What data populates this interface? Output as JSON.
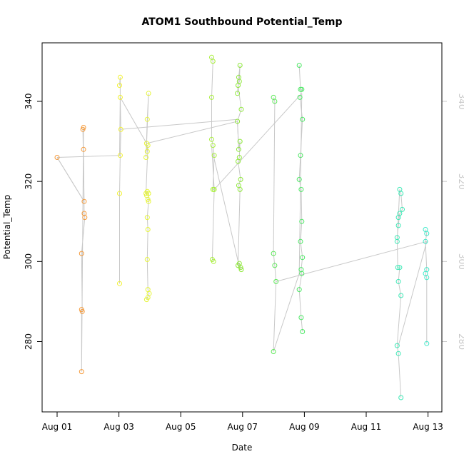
{
  "chart_data": {
    "type": "scatter",
    "title": "ATOM1 Southbound Potential_Temp",
    "xlabel": "Date",
    "ylabel": "Potential_Temp",
    "xlim": [
      "2016-08-01",
      "2016-08-13"
    ],
    "ylim_left": [
      261,
      355
    ],
    "ylim_right": [
      261,
      355
    ],
    "x_ticks": [
      {
        "date": "2016-08-01",
        "label": "Aug 01"
      },
      {
        "date": "2016-08-03",
        "label": "Aug 03"
      },
      {
        "date": "2016-08-05",
        "label": "Aug 05"
      },
      {
        "date": "2016-08-07",
        "label": "Aug 07"
      },
      {
        "date": "2016-08-09",
        "label": "Aug 09"
      },
      {
        "date": "2016-08-11",
        "label": "Aug 11"
      },
      {
        "date": "2016-08-13",
        "label": "Aug 13"
      }
    ],
    "y_ticks_left": [
      280,
      300,
      320,
      340
    ],
    "y_ticks_right": [
      280,
      300,
      320,
      340
    ],
    "grid": false,
    "legend": "none",
    "line_color": "#c8c8c8",
    "points": [
      {
        "x": "2016-08-01 00:00",
        "y": 326,
        "color": "#f59a3a"
      },
      {
        "x": "2016-08-01 21:00",
        "y": 315,
        "color": "#f59a3a"
      },
      {
        "x": "2016-08-01 20:00",
        "y": 333,
        "color": "#f59a3a"
      },
      {
        "x": "2016-08-01 20:30",
        "y": 328,
        "color": "#f59a3a"
      },
      {
        "x": "2016-08-01 21:00",
        "y": 312,
        "color": "#f59a3a"
      },
      {
        "x": "2016-08-01 21:30",
        "y": 311,
        "color": "#f59a3a"
      },
      {
        "x": "2016-08-01 19:00",
        "y": 302,
        "color": "#f59a3a"
      },
      {
        "x": "2016-08-01 19:30",
        "y": 287.5,
        "color": "#f59a3a"
      },
      {
        "x": "2016-08-01 19:00",
        "y": 288,
        "color": "#f59a3a"
      },
      {
        "x": "2016-08-01 19:00",
        "y": 272.5,
        "color": "#f59a3a"
      },
      {
        "x": "2016-08-01 20:30",
        "y": 333.5,
        "color": "#f59a3a"
      },
      {
        "x": "2016-08-03 00:30",
        "y": 344,
        "color": "#f2f22e"
      },
      {
        "x": "2016-08-03 01:00",
        "y": 346,
        "color": "#f2f22e"
      },
      {
        "x": "2016-08-03 01:00",
        "y": 341,
        "color": "#f2f22e"
      },
      {
        "x": "2016-08-03 01:30",
        "y": 333,
        "color": "#f2f22e"
      },
      {
        "x": "2016-08-03 01:00",
        "y": 326.5,
        "color": "#f2f22e"
      },
      {
        "x": "2016-08-03 00:30",
        "y": 317,
        "color": "#f2f22e"
      },
      {
        "x": "2016-08-03 00:30",
        "y": 294.5,
        "color": "#f2f22e"
      },
      {
        "x": "2016-08-03 21:00",
        "y": 326,
        "color": "#e6f53a"
      },
      {
        "x": "2016-08-03 22:00",
        "y": 335.5,
        "color": "#e6f53a"
      },
      {
        "x": "2016-08-03 23:00",
        "y": 342,
        "color": "#e6f53a"
      },
      {
        "x": "2016-08-03 21:30",
        "y": 329.5,
        "color": "#e6f53a"
      },
      {
        "x": "2016-08-03 22:00",
        "y": 327.5,
        "color": "#e6f53a"
      },
      {
        "x": "2016-08-03 22:30",
        "y": 329,
        "color": "#e6f53a"
      },
      {
        "x": "2016-08-03 21:00",
        "y": 317,
        "color": "#e6f53a"
      },
      {
        "x": "2016-08-03 21:30",
        "y": 316.5,
        "color": "#e6f53a"
      },
      {
        "x": "2016-08-03 22:00",
        "y": 317.5,
        "color": "#e6f53a"
      },
      {
        "x": "2016-08-03 23:00",
        "y": 317,
        "color": "#e6f53a"
      },
      {
        "x": "2016-08-03 22:30",
        "y": 315.5,
        "color": "#e6f53a"
      },
      {
        "x": "2016-08-03 23:00",
        "y": 315,
        "color": "#e6f53a"
      },
      {
        "x": "2016-08-03 22:00",
        "y": 311,
        "color": "#e6f53a"
      },
      {
        "x": "2016-08-03 22:30",
        "y": 308,
        "color": "#e6f53a"
      },
      {
        "x": "2016-08-03 22:00",
        "y": 300.5,
        "color": "#e6f53a"
      },
      {
        "x": "2016-08-03 22:30",
        "y": 293,
        "color": "#e6f53a"
      },
      {
        "x": "2016-08-03 23:30",
        "y": 292,
        "color": "#e6f53a"
      },
      {
        "x": "2016-08-03 21:30",
        "y": 290.5,
        "color": "#e6f53a"
      },
      {
        "x": "2016-08-03 22:30",
        "y": 291,
        "color": "#e6f53a"
      },
      {
        "x": "2016-08-06 00:00",
        "y": 351,
        "color": "#a8f03a"
      },
      {
        "x": "2016-08-06 01:00",
        "y": 350,
        "color": "#a8f03a"
      },
      {
        "x": "2016-08-06 00:00",
        "y": 341,
        "color": "#a8f03a"
      },
      {
        "x": "2016-08-06 00:00",
        "y": 330.5,
        "color": "#a8f03a"
      },
      {
        "x": "2016-08-06 01:00",
        "y": 329,
        "color": "#a8f03a"
      },
      {
        "x": "2016-08-06 02:00",
        "y": 326.5,
        "color": "#a8f03a"
      },
      {
        "x": "2016-08-06 01:00",
        "y": 318,
        "color": "#a8f03a"
      },
      {
        "x": "2016-08-06 02:00",
        "y": 318,
        "color": "#a8f03a"
      },
      {
        "x": "2016-08-06 00:30",
        "y": 300.5,
        "color": "#a8f03a"
      },
      {
        "x": "2016-08-06 01:30",
        "y": 300,
        "color": "#a8f03a"
      },
      {
        "x": "2016-08-06 20:00",
        "y": 342,
        "color": "#8ee83a"
      },
      {
        "x": "2016-08-06 21:00",
        "y": 346,
        "color": "#8ee83a"
      },
      {
        "x": "2016-08-06 22:00",
        "y": 349,
        "color": "#8ee83a"
      },
      {
        "x": "2016-08-06 21:30",
        "y": 345,
        "color": "#8ee83a"
      },
      {
        "x": "2016-08-06 20:30",
        "y": 344,
        "color": "#8ee83a"
      },
      {
        "x": "2016-08-06 23:00",
        "y": 338,
        "color": "#8ee83a"
      },
      {
        "x": "2016-08-06 20:00",
        "y": 335,
        "color": "#8ee83a"
      },
      {
        "x": "2016-08-06 21:00",
        "y": 328,
        "color": "#8ee83a"
      },
      {
        "x": "2016-08-06 22:00",
        "y": 330,
        "color": "#8ee83a"
      },
      {
        "x": "2016-08-06 21:30",
        "y": 326,
        "color": "#8ee83a"
      },
      {
        "x": "2016-08-06 20:30",
        "y": 325,
        "color": "#8ee83a"
      },
      {
        "x": "2016-08-06 22:30",
        "y": 320.5,
        "color": "#8ee83a"
      },
      {
        "x": "2016-08-06 21:00",
        "y": 319,
        "color": "#8ee83a"
      },
      {
        "x": "2016-08-06 22:00",
        "y": 318,
        "color": "#8ee83a"
      },
      {
        "x": "2016-08-06 20:30",
        "y": 299,
        "color": "#8ee83a"
      },
      {
        "x": "2016-08-06 21:30",
        "y": 299.5,
        "color": "#8ee83a"
      },
      {
        "x": "2016-08-06 22:30",
        "y": 298.5,
        "color": "#8ee83a"
      },
      {
        "x": "2016-08-06 23:00",
        "y": 298,
        "color": "#8ee83a"
      },
      {
        "x": "2016-08-08 00:00",
        "y": 341,
        "color": "#5ee85a"
      },
      {
        "x": "2016-08-08 01:00",
        "y": 340,
        "color": "#5ee85a"
      },
      {
        "x": "2016-08-08 00:00",
        "y": 302,
        "color": "#5ee85a"
      },
      {
        "x": "2016-08-08 01:00",
        "y": 299,
        "color": "#5ee85a"
      },
      {
        "x": "2016-08-08 02:00",
        "y": 295,
        "color": "#5ee85a"
      },
      {
        "x": "2016-08-08 00:00",
        "y": 277.5,
        "color": "#5ee85a"
      },
      {
        "x": "2016-08-08 20:00",
        "y": 349,
        "color": "#4ce864"
      },
      {
        "x": "2016-08-08 21:00",
        "y": 343,
        "color": "#4ce864"
      },
      {
        "x": "2016-08-08 22:00",
        "y": 343,
        "color": "#4ce864"
      },
      {
        "x": "2016-08-08 20:30",
        "y": 341,
        "color": "#4ce864"
      },
      {
        "x": "2016-08-08 22:30",
        "y": 335.5,
        "color": "#4ce864"
      },
      {
        "x": "2016-08-08 21:00",
        "y": 326.5,
        "color": "#4ce864"
      },
      {
        "x": "2016-08-08 20:00",
        "y": 320.5,
        "color": "#4ce864"
      },
      {
        "x": "2016-08-08 21:30",
        "y": 318,
        "color": "#4ce864"
      },
      {
        "x": "2016-08-08 22:00",
        "y": 310,
        "color": "#4ce864"
      },
      {
        "x": "2016-08-08 21:00",
        "y": 305,
        "color": "#4ce864"
      },
      {
        "x": "2016-08-08 22:30",
        "y": 301,
        "color": "#4ce864"
      },
      {
        "x": "2016-08-08 21:30",
        "y": 298,
        "color": "#4ce864"
      },
      {
        "x": "2016-08-08 22:00",
        "y": 297,
        "color": "#4ce864"
      },
      {
        "x": "2016-08-08 20:00",
        "y": 293,
        "color": "#4ce864"
      },
      {
        "x": "2016-08-08 21:30",
        "y": 286,
        "color": "#4ce864"
      },
      {
        "x": "2016-08-08 22:30",
        "y": 282.5,
        "color": "#4ce864"
      },
      {
        "x": "2016-08-12 00:00",
        "y": 305,
        "color": "#3ee8b6"
      },
      {
        "x": "2016-08-12 02:00",
        "y": 318,
        "color": "#3ee8b6"
      },
      {
        "x": "2016-08-12 03:00",
        "y": 317,
        "color": "#3ee8b6"
      },
      {
        "x": "2016-08-12 04:00",
        "y": 313,
        "color": "#3ee8b6"
      },
      {
        "x": "2016-08-12 01:00",
        "y": 311,
        "color": "#3ee8b6"
      },
      {
        "x": "2016-08-12 02:00",
        "y": 312,
        "color": "#3ee8b6"
      },
      {
        "x": "2016-08-12 01:00",
        "y": 309,
        "color": "#3ee8b6"
      },
      {
        "x": "2016-08-12 00:00",
        "y": 306,
        "color": "#3ee8b6"
      },
      {
        "x": "2016-08-12 00:30",
        "y": 298.5,
        "color": "#3ee8b6"
      },
      {
        "x": "2016-08-12 02:00",
        "y": 298.5,
        "color": "#3ee8b6"
      },
      {
        "x": "2016-08-12 01:00",
        "y": 295,
        "color": "#3ee8b6"
      },
      {
        "x": "2016-08-12 03:00",
        "y": 291.5,
        "color": "#3ee8b6"
      },
      {
        "x": "2016-08-12 00:00",
        "y": 279,
        "color": "#3ee8b6"
      },
      {
        "x": "2016-08-12 01:00",
        "y": 277,
        "color": "#3ee8b6"
      },
      {
        "x": "2016-08-12 03:00",
        "y": 266,
        "color": "#3ee8b6"
      },
      {
        "x": "2016-08-12 22:00",
        "y": 308,
        "color": "#3ee8c8"
      },
      {
        "x": "2016-08-12 23:00",
        "y": 307,
        "color": "#3ee8c8"
      },
      {
        "x": "2016-08-12 22:00",
        "y": 305,
        "color": "#3ee8c8"
      },
      {
        "x": "2016-08-12 23:00",
        "y": 298,
        "color": "#3ee8c8"
      },
      {
        "x": "2016-08-12 22:00",
        "y": 297,
        "color": "#3ee8c8"
      },
      {
        "x": "2016-08-12 23:00",
        "y": 296,
        "color": "#3ee8c8"
      },
      {
        "x": "2016-08-12 23:00",
        "y": 279.5,
        "color": "#3ee8c8"
      }
    ],
    "connecting_lines": [
      [
        [
          "2016-08-01 00:00",
          326
        ],
        [
          "2016-08-03 00:30",
          326.5
        ],
        [
          "2016-08-03 01:00",
          341
        ],
        [
          "2016-08-03 21:30",
          329.5
        ],
        [
          "2016-08-06 20:00",
          335
        ],
        [
          "2016-08-06 21:00",
          328
        ]
      ],
      [
        [
          "2016-08-01 00:00",
          326
        ],
        [
          "2016-08-01 21:00",
          315
        ]
      ],
      [
        [
          "2016-08-03 01:00",
          333
        ],
        [
          "2016-08-06 20:00",
          335.5
        ]
      ],
      [
        [
          "2016-08-06 00:00",
          329
        ],
        [
          "2016-08-06 02:00",
          318
        ],
        [
          "2016-08-08 22:00",
          342
        ]
      ],
      [
        [
          "2016-08-08 02:00",
          295
        ],
        [
          "2016-08-12 23:00",
          305
        ],
        [
          "2016-08-12 01:00",
          279
        ]
      ],
      [
        [
          "2016-08-06 01:00",
          327
        ],
        [
          "2016-08-06 22:00",
          298
        ]
      ],
      [
        [
          "2016-08-08 00:00",
          277.5
        ],
        [
          "2016-08-08 20:00",
          297
        ],
        [
          "2016-08-08 22:00",
          342
        ]
      ]
    ]
  }
}
